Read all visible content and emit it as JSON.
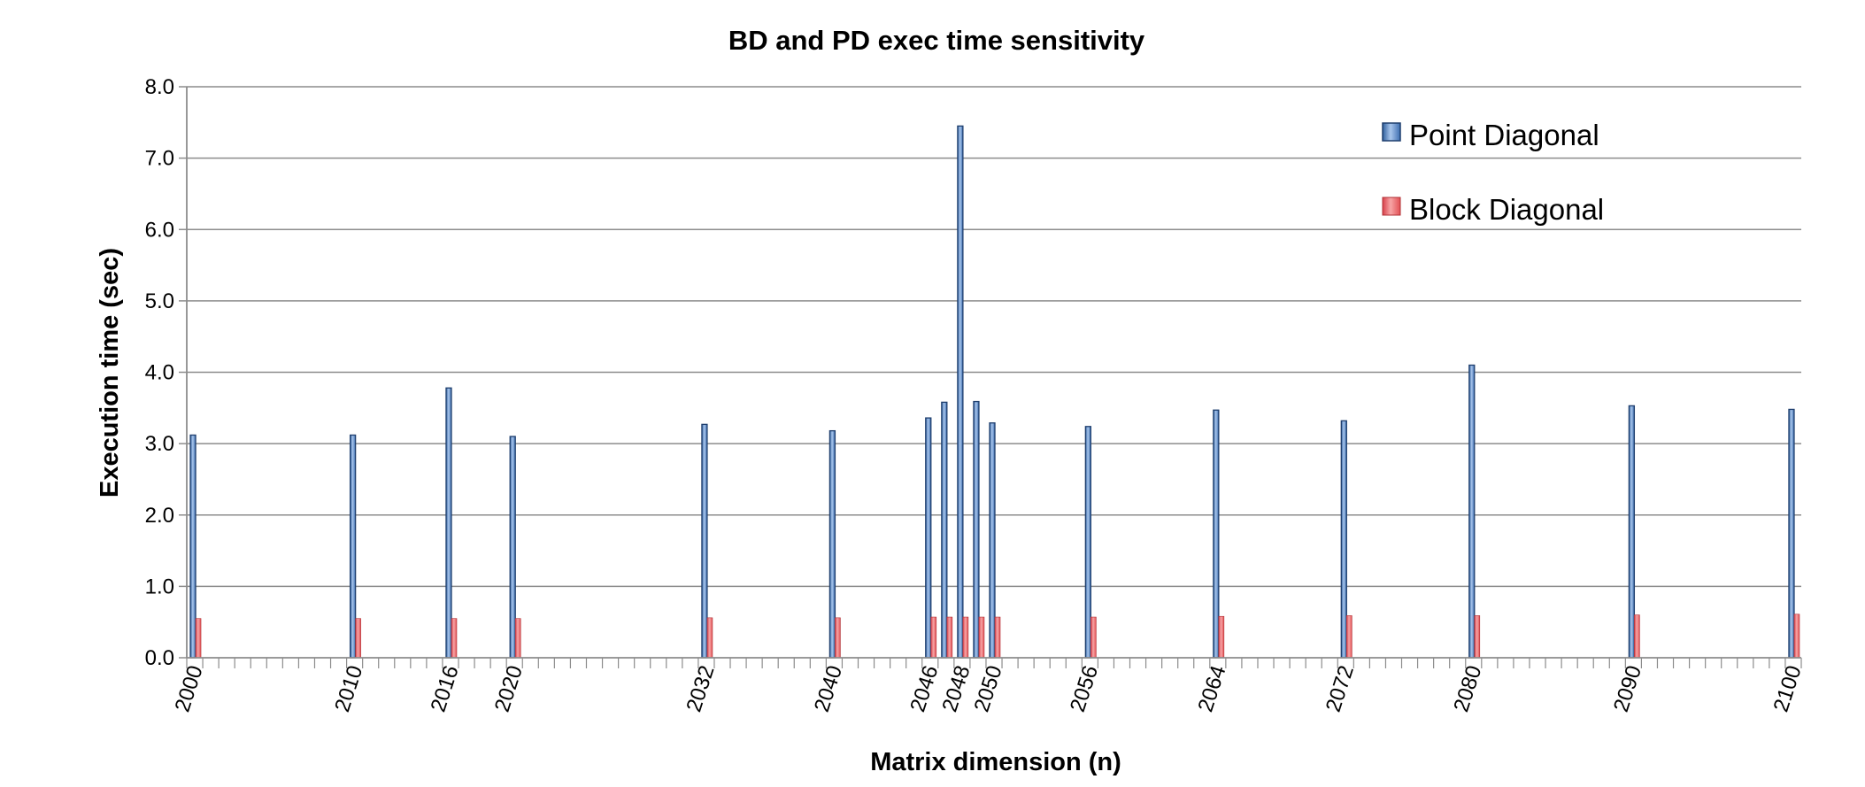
{
  "chart_data": {
    "type": "bar",
    "title": "BD and PD exec time sensitivity",
    "xlabel": "Matrix dimension (n)",
    "ylabel": "Execution time (sec)",
    "x_range": [
      2000,
      2100
    ],
    "ylim": [
      0,
      8
    ],
    "y_ticks": [
      "0.0",
      "1.0",
      "2.0",
      "3.0",
      "4.0",
      "5.0",
      "6.0",
      "7.0",
      "8.0"
    ],
    "x_tick_labels": [
      "2000",
      "2010",
      "2016",
      "2020",
      "2032",
      "2040",
      "2046",
      "2048",
      "2050",
      "2056",
      "2064",
      "2072",
      "2080",
      "2090",
      "2100"
    ],
    "categories": [
      2000,
      2010,
      2016,
      2020,
      2032,
      2040,
      2046,
      2047,
      2048,
      2049,
      2050,
      2056,
      2064,
      2072,
      2080,
      2090,
      2100
    ],
    "series": [
      {
        "name": "Point Diagonal",
        "color": "#4f81bd",
        "values": [
          3.12,
          3.12,
          3.78,
          3.1,
          3.27,
          3.18,
          3.36,
          3.58,
          7.45,
          3.59,
          3.29,
          3.24,
          3.47,
          3.32,
          4.1,
          3.53,
          3.48
        ]
      },
      {
        "name": "Block Diagonal",
        "color": "#e8585a",
        "values": [
          0.55,
          0.55,
          0.55,
          0.55,
          0.56,
          0.56,
          0.57,
          0.57,
          0.57,
          0.57,
          0.57,
          0.57,
          0.58,
          0.59,
          0.59,
          0.6,
          0.61
        ]
      }
    ],
    "grid": true,
    "legend_position": "top-right"
  }
}
